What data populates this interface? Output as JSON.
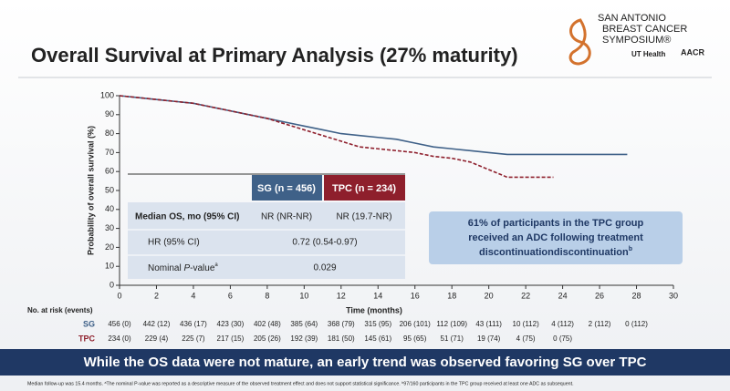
{
  "header": {
    "title": "Overall Survival at Primary Analysis (27% maturity)",
    "logo": {
      "lines": [
        "SAN ANTONIO",
        "BREAST CANCER",
        "SYMPOSIUM®"
      ],
      "partners": [
        "UT Health",
        "AACR"
      ]
    }
  },
  "chart_data": {
    "type": "line",
    "y_label": "Probability of overall survival (%)",
    "x_label": "Time (months)",
    "xlim": [
      0,
      30
    ],
    "xticks": [
      0,
      2,
      4,
      6,
      8,
      10,
      12,
      14,
      16,
      18,
      20,
      22,
      24,
      26,
      28,
      30
    ],
    "ylim": [
      0,
      100
    ],
    "yticks": [
      0,
      10,
      20,
      30,
      40,
      50,
      60,
      70,
      80,
      90,
      100
    ],
    "series": [
      {
        "name": "SG",
        "color": "#3f6188",
        "dash": false,
        "x": [
          0,
          1,
          2,
          3,
          4,
          5,
          6,
          7,
          8,
          9,
          10,
          11,
          12,
          13,
          14,
          15,
          16,
          17,
          18,
          19,
          20,
          21,
          22,
          24,
          27.5
        ],
        "values": [
          100,
          99,
          98,
          97,
          96,
          94,
          92,
          90,
          88,
          86,
          84,
          82,
          80,
          79,
          78,
          77,
          75,
          73,
          72,
          71,
          70,
          69,
          69,
          69,
          69
        ]
      },
      {
        "name": "TPC",
        "color": "#8e1f2c",
        "dash": true,
        "x": [
          0,
          1,
          2,
          3,
          4,
          5,
          6,
          7,
          8,
          9,
          10,
          11,
          12,
          13,
          14,
          15,
          16,
          17,
          18,
          19,
          20,
          21,
          22,
          23.5
        ],
        "values": [
          100,
          99,
          98,
          97,
          96,
          94,
          92,
          90,
          88,
          85,
          82,
          79,
          76,
          73,
          72,
          71,
          70,
          68,
          67,
          65,
          61,
          57,
          57,
          57
        ]
      }
    ],
    "summary_table": {
      "columns": [
        "SG (n = 456)",
        "TPC (n = 234)"
      ],
      "rows": [
        {
          "label": "Median OS, mo (95% CI)",
          "cells": [
            "NR (NR-NR)",
            "NR (19.7-NR)"
          ]
        },
        {
          "label": "HR (95% CI)",
          "cells": [
            "0.72 (0.54-0.97)"
          ]
        },
        {
          "label_parts": [
            "Nominal ",
            "P",
            "-value",
            "a"
          ],
          "cells": [
            "0.029"
          ]
        }
      ]
    },
    "callout": {
      "lines": [
        "61% of participants in the TPC group",
        "received an ADC following treatment",
        "discontinuation"
      ],
      "sup": "b"
    },
    "at_risk": {
      "title": "No. at risk (events)",
      "rows": [
        {
          "name": "SG",
          "values": [
            "456 (0)",
            "442 (12)",
            "436 (17)",
            "423 (30)",
            "402 (48)",
            "385 (64)",
            "368 (79)",
            "315 (95)",
            "206 (101)",
            "112 (109)",
            "43 (111)",
            "10 (112)",
            "4 (112)",
            "2 (112)",
            "0 (112)"
          ]
        },
        {
          "name": "TPC",
          "values": [
            "234 (0)",
            "229 (4)",
            "225 (7)",
            "217 (15)",
            "205 (26)",
            "192 (39)",
            "181 (50)",
            "145 (61)",
            "95 (65)",
            "51 (71)",
            "19 (74)",
            "4 (75)",
            "0 (75)"
          ]
        }
      ]
    }
  },
  "banner": "While the OS data were not mature, an early trend was observed favoring SG over TPC",
  "footnote": "Median follow-up was 15.4 months. ᵃThe nominal P-value was reported as a descriptive measure of the observed treatment effect and does not support statistical significance. ᵇ97/160 participants in the TPC group received at least one ADC as subsequent."
}
